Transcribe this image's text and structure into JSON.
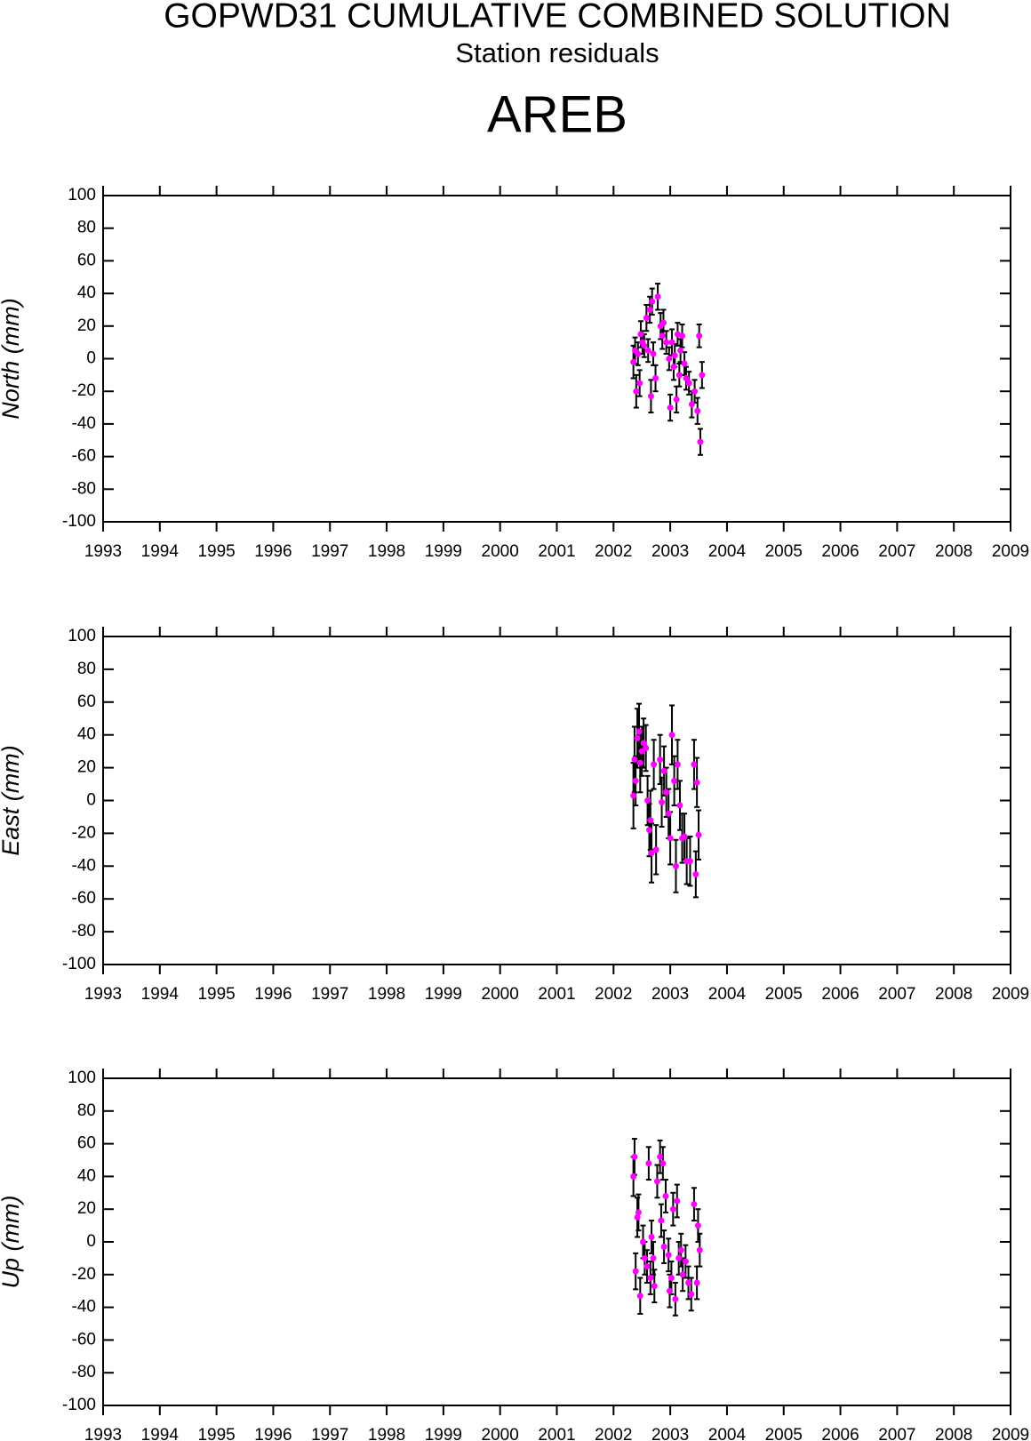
{
  "header": {
    "title": "GOPWD31 CUMULATIVE COMBINED SOLUTION",
    "subtitle": "Station residuals",
    "station": "AREB"
  },
  "chart_data": [
    {
      "type": "scatter",
      "ylabel": "North (mm)",
      "color": "#ff00ff",
      "error_color": "#000000",
      "xlim": [
        1993,
        2009
      ],
      "xticks": [
        1993,
        1994,
        1995,
        1996,
        1997,
        1998,
        1999,
        2000,
        2001,
        2002,
        2003,
        2004,
        2005,
        2006,
        2007,
        2008,
        2009
      ],
      "ylim": [
        -100,
        100
      ],
      "yticks": [
        -100,
        -80,
        -60,
        -40,
        -20,
        0,
        20,
        40,
        60,
        80,
        100
      ],
      "x": [
        2002.35,
        2002.38,
        2002.4,
        2002.43,
        2002.46,
        2002.48,
        2002.51,
        2002.54,
        2002.58,
        2002.61,
        2002.64,
        2002.66,
        2002.68,
        2002.7,
        2002.74,
        2002.78,
        2002.83,
        2002.86,
        2002.88,
        2002.93,
        2002.98,
        2003.0,
        2003.03,
        2003.06,
        2003.08,
        2003.11,
        2003.13,
        2003.16,
        2003.18,
        2003.21,
        2003.25,
        2003.28,
        2003.33,
        2003.38,
        2003.43,
        2003.48,
        2003.51,
        2003.53,
        2003.56
      ],
      "values": [
        -2,
        5,
        -20,
        3,
        -15,
        15,
        10,
        8,
        25,
        5,
        30,
        -23,
        35,
        3,
        -12,
        38,
        20,
        14,
        22,
        10,
        0,
        -30,
        10,
        -5,
        2,
        -25,
        15,
        -10,
        5,
        14,
        -3,
        -12,
        -15,
        -28,
        -20,
        -32,
        14,
        -51,
        -10
      ],
      "errors": [
        10,
        8,
        10,
        7,
        8,
        8,
        7,
        7,
        8,
        7,
        8,
        10,
        8,
        7,
        8,
        8,
        8,
        8,
        8,
        7,
        7,
        8,
        8,
        8,
        7,
        8,
        7,
        7,
        7,
        7,
        7,
        7,
        7,
        8,
        7,
        8,
        7,
        8,
        8
      ]
    },
    {
      "type": "scatter",
      "ylabel": "East (mm)",
      "color": "#ff00ff",
      "error_color": "#000000",
      "xlim": [
        1993,
        2009
      ],
      "xticks": [
        1993,
        1994,
        1995,
        1996,
        1997,
        1998,
        1999,
        2000,
        2001,
        2002,
        2003,
        2004,
        2005,
        2006,
        2007,
        2008,
        2009
      ],
      "ylim": [
        -100,
        100
      ],
      "yticks": [
        -100,
        -80,
        -60,
        -40,
        -20,
        0,
        20,
        40,
        60,
        80,
        100
      ],
      "x": [
        2002.35,
        2002.37,
        2002.39,
        2002.42,
        2002.45,
        2002.47,
        2002.5,
        2002.53,
        2002.57,
        2002.6,
        2002.63,
        2002.65,
        2002.67,
        2002.71,
        2002.75,
        2002.82,
        2002.85,
        2002.89,
        2002.93,
        2002.97,
        2003.0,
        2003.03,
        2003.07,
        2003.1,
        2003.13,
        2003.17,
        2003.21,
        2003.25,
        2003.29,
        2003.35,
        2003.42,
        2003.45,
        2003.47,
        2003.5
      ],
      "values": [
        3,
        25,
        12,
        38,
        42,
        23,
        30,
        35,
        32,
        0,
        -18,
        -12,
        -32,
        22,
        -30,
        25,
        -1,
        18,
        5,
        -8,
        -23,
        40,
        12,
        -40,
        22,
        -3,
        -23,
        -22,
        -37,
        -37,
        22,
        -45,
        11,
        -21
      ],
      "errors": [
        20,
        20,
        15,
        18,
        17,
        18,
        15,
        15,
        14,
        15,
        16,
        18,
        18,
        15,
        15,
        15,
        15,
        15,
        15,
        15,
        16,
        18,
        15,
        16,
        15,
        15,
        15,
        14,
        14,
        15,
        15,
        14,
        15,
        15
      ]
    },
    {
      "type": "scatter",
      "ylabel": "Up (mm)",
      "color": "#ff00ff",
      "error_color": "#000000",
      "xlim": [
        1993,
        2009
      ],
      "xticks": [
        1993,
        1994,
        1995,
        1996,
        1997,
        1998,
        1999,
        2000,
        2001,
        2002,
        2003,
        2004,
        2005,
        2006,
        2007,
        2008,
        2009
      ],
      "ylim": [
        -100,
        100
      ],
      "yticks": [
        -100,
        -80,
        -60,
        -40,
        -20,
        0,
        20,
        40,
        60,
        80,
        100
      ],
      "x": [
        2002.35,
        2002.37,
        2002.39,
        2002.42,
        2002.44,
        2002.47,
        2002.52,
        2002.55,
        2002.59,
        2002.62,
        2002.65,
        2002.67,
        2002.7,
        2002.72,
        2002.77,
        2002.82,
        2002.84,
        2002.87,
        2002.89,
        2002.92,
        2002.97,
        2002.99,
        2003.02,
        2003.05,
        2003.09,
        2003.12,
        2003.15,
        2003.19,
        2003.22,
        2003.27,
        2003.32,
        2003.37,
        2003.42,
        2003.47,
        2003.49,
        2003.52
      ],
      "values": [
        40,
        52,
        -18,
        15,
        18,
        -33,
        0,
        -10,
        -15,
        48,
        -22,
        3,
        -10,
        -27,
        37,
        52,
        13,
        48,
        -3,
        28,
        -8,
        -30,
        -22,
        20,
        -35,
        25,
        -10,
        -5,
        -20,
        -12,
        -25,
        -32,
        23,
        -25,
        10,
        -5
      ],
      "errors": [
        12,
        11,
        11,
        12,
        11,
        11,
        10,
        10,
        10,
        10,
        10,
        10,
        10,
        10,
        10,
        10,
        10,
        10,
        10,
        10,
        10,
        10,
        10,
        10,
        10,
        10,
        10,
        10,
        10,
        10,
        10,
        10,
        10,
        10,
        10,
        10
      ]
    }
  ]
}
